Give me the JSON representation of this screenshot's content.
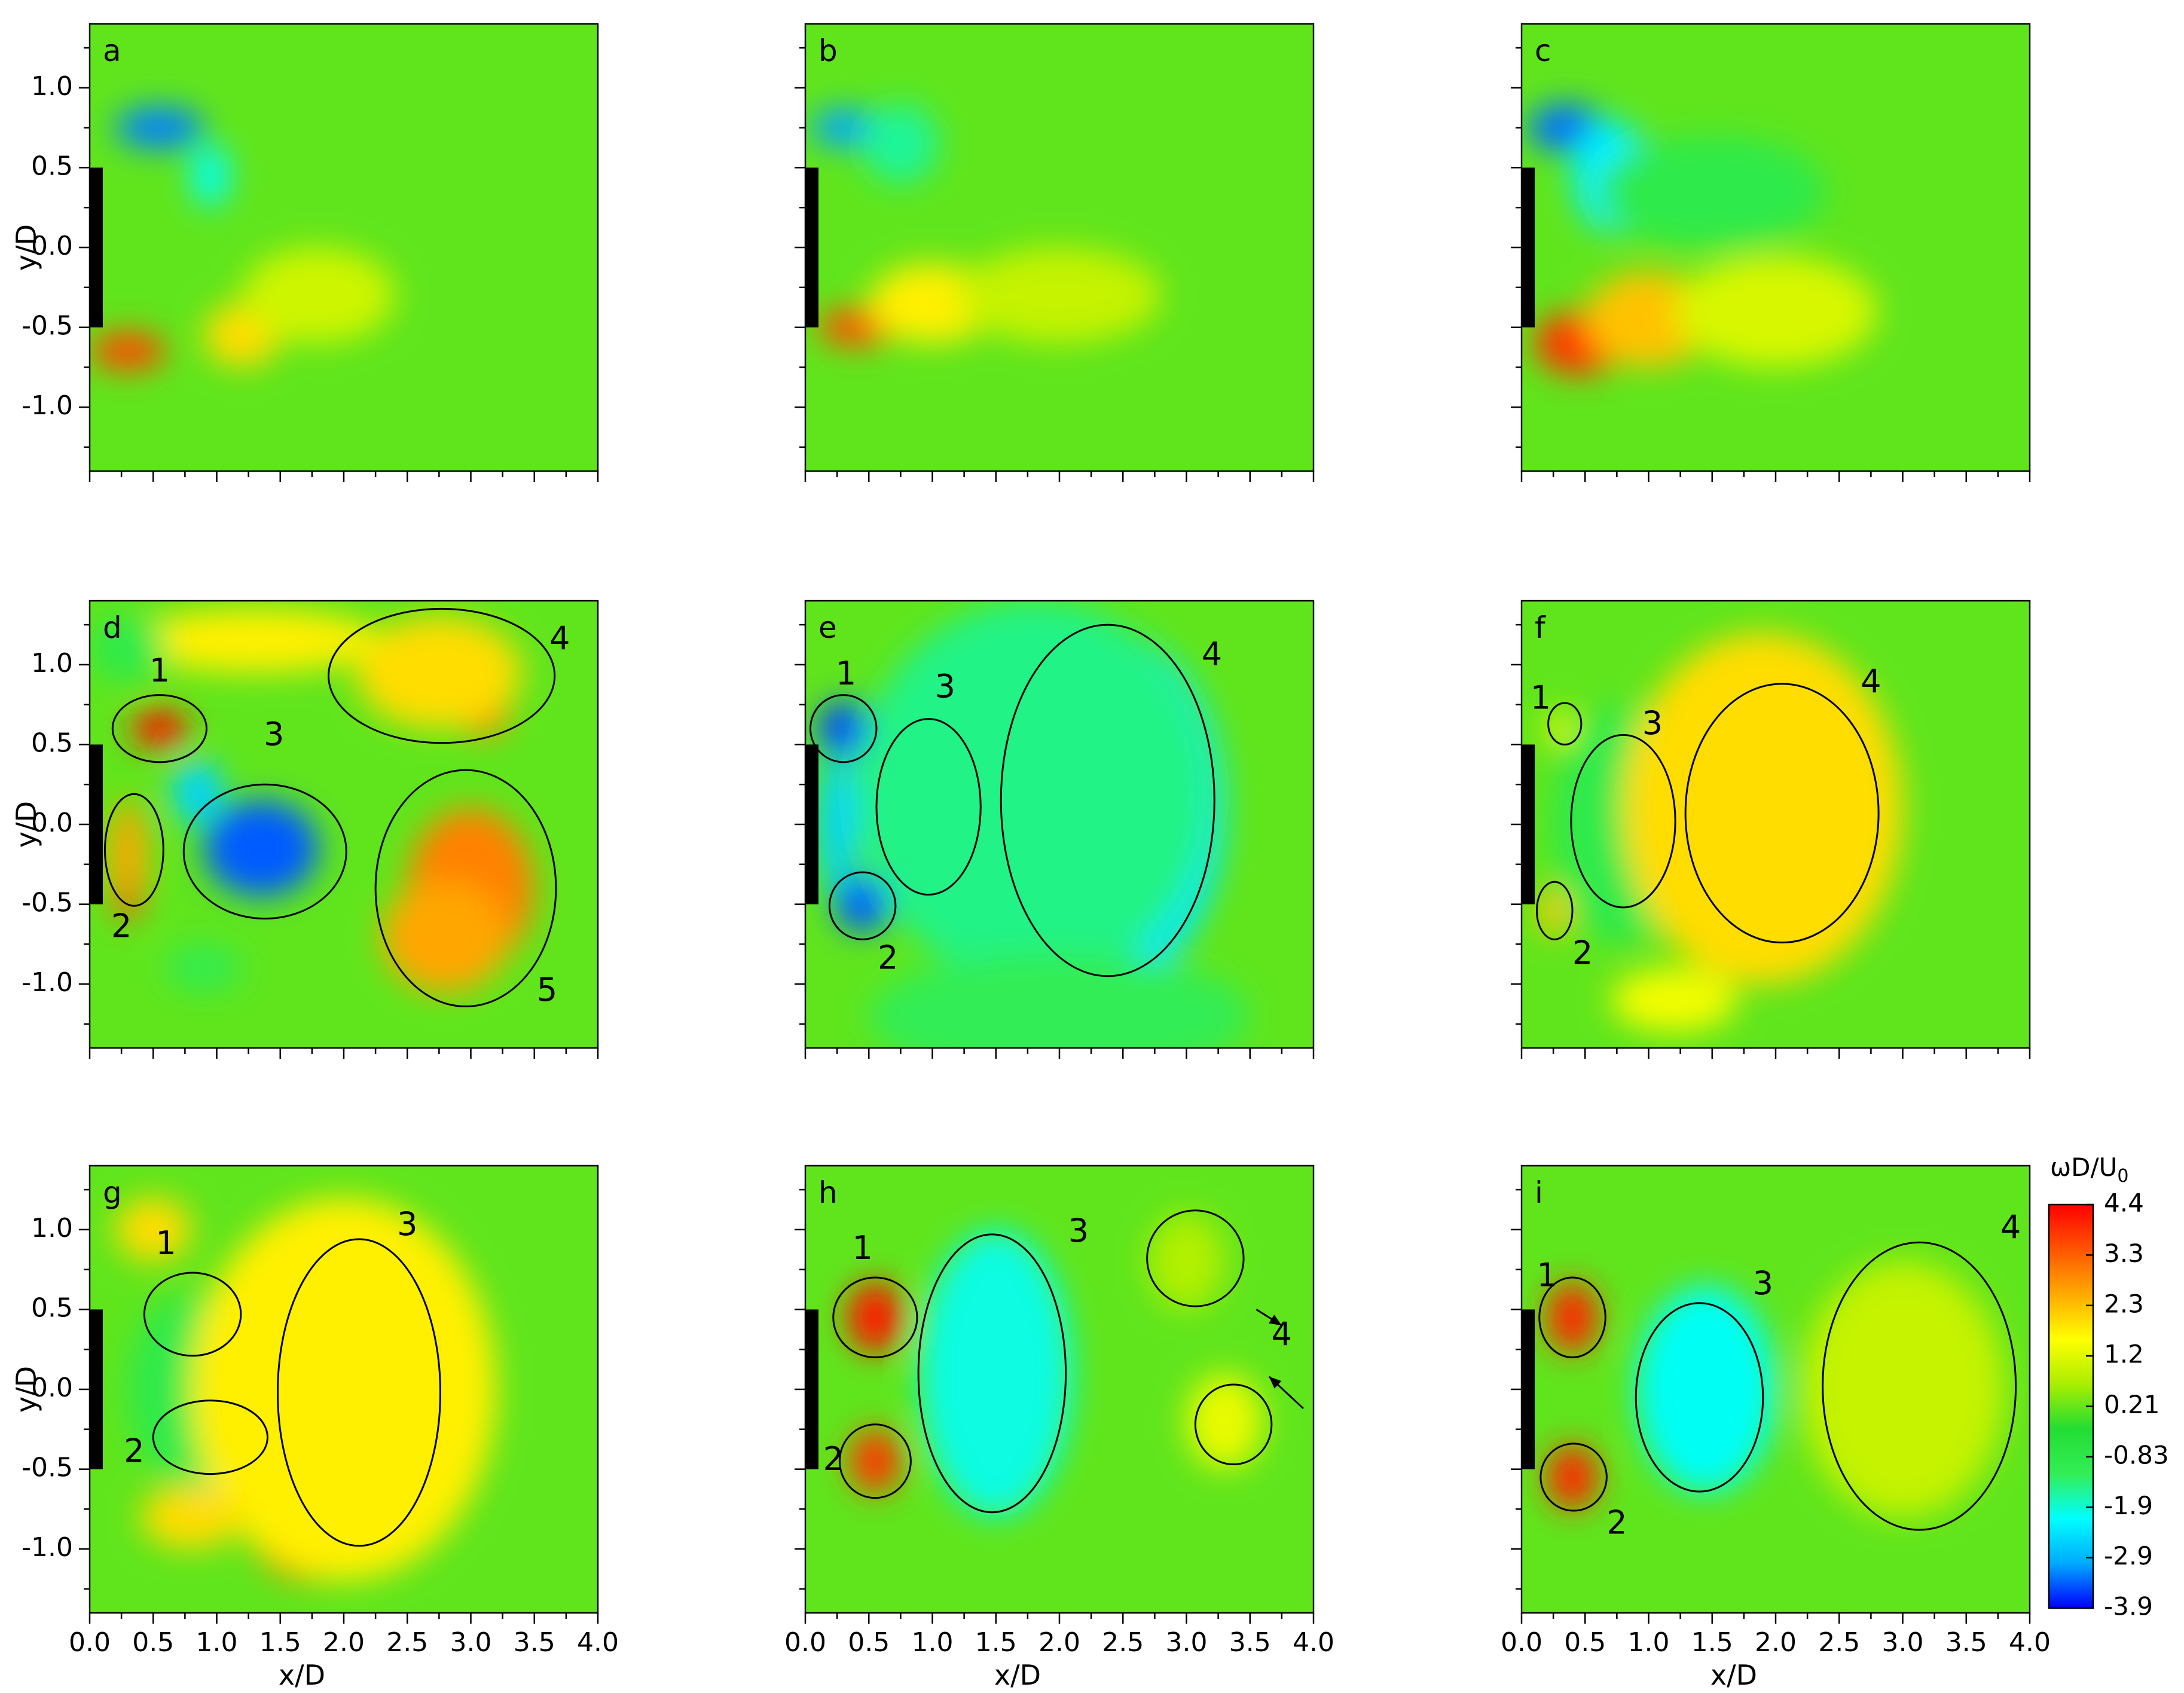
{
  "chart_data": {
    "type": "heatmap",
    "description_colormap": [
      "#0000ff",
      "#00aaff",
      "#00ffff",
      "#33ee55",
      "#22dd33",
      "#aaee00",
      "#ffff00",
      "#ffaa00",
      "#ff5500",
      "#ff0000"
    ],
    "colorbar": {
      "title": "ωD/U",
      "title_sub": "0",
      "ticks": [
        "4.4",
        "3.3",
        "2.3",
        "1.2",
        "0.21",
        "-0.83",
        "-1.9",
        "-2.9",
        "-3.9"
      ],
      "range": [
        -3.9,
        4.4
      ]
    },
    "x_axis": {
      "label": "x/D",
      "range": [
        0,
        4.0
      ],
      "ticks": [
        "0.0",
        "0.5",
        "1.0",
        "1.5",
        "2.0",
        "2.5",
        "3.0",
        "3.5",
        "4.0"
      ]
    },
    "y_axis": {
      "label": "y/D",
      "range": [
        -1.4,
        1.4
      ],
      "ticks": [
        "1.0",
        "0.5",
        "0.0",
        "-0.5",
        "-1.0"
      ]
    },
    "panels": [
      {
        "id": "a",
        "blobs": [
          {
            "x": 0.55,
            "y": 0.75,
            "rx": 0.35,
            "ry": 0.13,
            "v": -3.2
          },
          {
            "x": 0.95,
            "y": 0.45,
            "rx": 0.15,
            "ry": 0.2,
            "v": -2.0
          },
          {
            "x": 0.3,
            "y": -0.65,
            "rx": 0.3,
            "ry": 0.12,
            "v": 3.6
          },
          {
            "x": 1.2,
            "y": -0.55,
            "rx": 0.3,
            "ry": 0.2,
            "v": 2.0
          },
          {
            "x": 1.8,
            "y": -0.3,
            "rx": 0.6,
            "ry": 0.3,
            "v": 1.1
          }
        ],
        "ellipses": [],
        "labels": [],
        "arrows": []
      },
      {
        "id": "b",
        "blobs": [
          {
            "x": 0.3,
            "y": 0.75,
            "rx": 0.25,
            "ry": 0.12,
            "v": -3.0
          },
          {
            "x": 0.75,
            "y": 0.65,
            "rx": 0.3,
            "ry": 0.25,
            "v": -1.5
          },
          {
            "x": 0.4,
            "y": -0.5,
            "rx": 0.3,
            "ry": 0.12,
            "v": 3.5
          },
          {
            "x": 1.0,
            "y": -0.35,
            "rx": 0.5,
            "ry": 0.25,
            "v": 1.8
          },
          {
            "x": 2.0,
            "y": -0.3,
            "rx": 0.8,
            "ry": 0.3,
            "v": 1.0
          }
        ],
        "ellipses": [],
        "labels": [],
        "arrows": []
      },
      {
        "id": "c",
        "blobs": [
          {
            "x": 0.35,
            "y": 0.75,
            "rx": 0.3,
            "ry": 0.15,
            "v": -3.3
          },
          {
            "x": 0.7,
            "y": 0.45,
            "rx": 0.3,
            "ry": 0.35,
            "v": -2.2
          },
          {
            "x": 1.5,
            "y": 0.35,
            "rx": 0.9,
            "ry": 0.35,
            "v": -0.9
          },
          {
            "x": 0.45,
            "y": -0.6,
            "rx": 0.35,
            "ry": 0.2,
            "v": 3.8
          },
          {
            "x": 1.0,
            "y": -0.45,
            "rx": 0.5,
            "ry": 0.3,
            "v": 2.3
          },
          {
            "x": 2.0,
            "y": -0.4,
            "rx": 0.8,
            "ry": 0.35,
            "v": 1.2
          }
        ],
        "ellipses": [],
        "labels": [],
        "arrows": []
      },
      {
        "id": "d",
        "blobs": [
          {
            "x": 0.55,
            "y": 0.6,
            "rx": 0.22,
            "ry": 0.12,
            "v": 4.2
          },
          {
            "x": 1.35,
            "y": -0.15,
            "rx": 0.45,
            "ry": 0.3,
            "v": -3.4
          },
          {
            "x": 0.85,
            "y": 0.2,
            "rx": 0.2,
            "ry": 0.2,
            "v": -2.5
          },
          {
            "x": 0.3,
            "y": -0.2,
            "rx": 0.15,
            "ry": 0.35,
            "v": 2.6
          },
          {
            "x": 0.3,
            "y": -0.5,
            "rx": 0.1,
            "ry": 0.1,
            "v": 3.5
          },
          {
            "x": 2.4,
            "y": 1.0,
            "rx": 0.2,
            "ry": 0.2,
            "v": 3.2
          },
          {
            "x": 3.1,
            "y": 0.7,
            "rx": 0.2,
            "ry": 0.15,
            "v": 3.0
          },
          {
            "x": 2.75,
            "y": 0.95,
            "rx": 0.65,
            "ry": 0.35,
            "v": 2.0
          },
          {
            "x": 3.0,
            "y": -0.4,
            "rx": 0.5,
            "ry": 0.5,
            "v": 3.0
          },
          {
            "x": 2.8,
            "y": -0.7,
            "rx": 0.5,
            "ry": 0.35,
            "v": 2.6
          },
          {
            "x": 0.9,
            "y": -0.9,
            "rx": 0.3,
            "ry": 0.15,
            "v": -1.0
          },
          {
            "x": 1.3,
            "y": 1.15,
            "rx": 1.0,
            "ry": 0.2,
            "v": 1.8
          },
          {
            "x": 0.3,
            "y": 1.1,
            "rx": 0.3,
            "ry": 0.2,
            "v": -0.9
          }
        ],
        "ellipses": [
          {
            "cx": 0.55,
            "cy": 0.6,
            "rx": 0.37,
            "ry": 0.21
          },
          {
            "cx": 0.35,
            "cy": -0.16,
            "rx": 0.23,
            "ry": 0.35
          },
          {
            "cx": 1.38,
            "cy": -0.17,
            "rx": 0.64,
            "ry": 0.42
          },
          {
            "cx": 2.77,
            "cy": 0.93,
            "rx": 0.89,
            "ry": 0.42
          },
          {
            "cx": 2.96,
            "cy": -0.4,
            "rx": 0.71,
            "ry": 0.74
          }
        ],
        "labels": [
          {
            "text": "1",
            "x": 0.55,
            "y": 0.95
          },
          {
            "text": "2",
            "x": 0.25,
            "y": -0.65
          },
          {
            "text": "3",
            "x": 1.45,
            "y": 0.55
          },
          {
            "text": "4",
            "x": 3.7,
            "y": 1.15
          },
          {
            "text": "5",
            "x": 3.6,
            "y": -1.05
          }
        ],
        "arrows": []
      },
      {
        "id": "e",
        "blobs": [
          {
            "x": 0.3,
            "y": 0.6,
            "rx": 0.2,
            "ry": 0.17,
            "v": -3.5
          },
          {
            "x": 0.45,
            "y": -0.5,
            "rx": 0.22,
            "ry": 0.17,
            "v": -3.4
          },
          {
            "x": 0.25,
            "y": 0.0,
            "rx": 0.15,
            "ry": 0.45,
            "v": -2.5
          },
          {
            "x": 0.85,
            "y": 0.3,
            "rx": 0.25,
            "ry": 0.3,
            "v": 4.0
          },
          {
            "x": 0.95,
            "y": -0.3,
            "rx": 0.2,
            "ry": 0.2,
            "v": 3.2
          },
          {
            "x": 0.9,
            "y": 0.0,
            "rx": 0.35,
            "ry": 0.6,
            "v": 2.3
          },
          {
            "x": 2.2,
            "y": 0.65,
            "rx": 0.45,
            "ry": 0.4,
            "v": -3.4
          },
          {
            "x": 2.6,
            "y": -0.3,
            "rx": 0.5,
            "ry": 0.45,
            "v": -3.2
          },
          {
            "x": 2.4,
            "y": 0.1,
            "rx": 0.9,
            "ry": 1.1,
            "v": -2.3
          },
          {
            "x": 1.8,
            "y": 0.2,
            "rx": 1.4,
            "ry": 1.2,
            "v": -1.4
          },
          {
            "x": 2.0,
            "y": -1.2,
            "rx": 1.5,
            "ry": 0.4,
            "v": -1.1
          }
        ],
        "ellipses": [
          {
            "cx": 0.3,
            "cy": 0.6,
            "rx": 0.26,
            "ry": 0.21
          },
          {
            "cx": 0.45,
            "cy": -0.51,
            "rx": 0.26,
            "ry": 0.21
          },
          {
            "cx": 0.97,
            "cy": 0.11,
            "rx": 0.41,
            "ry": 0.55
          },
          {
            "cx": 2.38,
            "cy": 0.15,
            "rx": 0.84,
            "ry": 1.1
          }
        ],
        "labels": [
          {
            "text": "1",
            "x": 0.32,
            "y": 0.93
          },
          {
            "text": "2",
            "x": 0.65,
            "y": -0.85
          },
          {
            "text": "3",
            "x": 1.1,
            "y": 0.85
          },
          {
            "text": "4",
            "x": 3.2,
            "y": 1.05
          }
        ],
        "arrows": []
      },
      {
        "id": "f",
        "blobs": [
          {
            "x": 0.7,
            "y": 0.2,
            "rx": 0.15,
            "ry": 0.2,
            "v": -3.6
          },
          {
            "x": 0.75,
            "y": -0.3,
            "rx": 0.2,
            "ry": 0.25,
            "v": -3.2
          },
          {
            "x": 0.75,
            "y": 0.0,
            "rx": 0.35,
            "ry": 0.55,
            "v": -2.3
          },
          {
            "x": 0.8,
            "y": 0.0,
            "rx": 0.55,
            "ry": 0.75,
            "v": -0.9
          },
          {
            "x": 2.3,
            "y": 0.0,
            "rx": 0.35,
            "ry": 0.45,
            "v": 4.0
          },
          {
            "x": 1.9,
            "y": -0.35,
            "rx": 0.35,
            "ry": 0.35,
            "v": 4.0
          },
          {
            "x": 2.0,
            "y": 0.05,
            "rx": 0.7,
            "ry": 0.8,
            "v": 3.2
          },
          {
            "x": 1.9,
            "y": 0.1,
            "rx": 1.1,
            "ry": 1.1,
            "v": 2.0
          },
          {
            "x": 0.3,
            "y": 0.6,
            "rx": 0.12,
            "ry": 0.1,
            "v": 1.5
          },
          {
            "x": 0.25,
            "y": -0.55,
            "rx": 0.12,
            "ry": 0.15,
            "v": 2.2
          },
          {
            "x": 1.2,
            "y": -1.1,
            "rx": 0.5,
            "ry": 0.2,
            "v": 1.5
          }
        ],
        "ellipses": [
          {
            "cx": 0.34,
            "cy": 0.63,
            "rx": 0.13,
            "ry": 0.13
          },
          {
            "cx": 0.26,
            "cy": -0.54,
            "rx": 0.14,
            "ry": 0.18
          },
          {
            "cx": 0.8,
            "cy": 0.02,
            "rx": 0.41,
            "ry": 0.54
          },
          {
            "cx": 2.05,
            "cy": 0.07,
            "rx": 0.76,
            "ry": 0.81
          }
        ],
        "labels": [
          {
            "text": "1",
            "x": 0.15,
            "y": 0.78
          },
          {
            "text": "2",
            "x": 0.48,
            "y": -0.82
          },
          {
            "text": "3",
            "x": 1.03,
            "y": 0.62
          },
          {
            "text": "4",
            "x": 2.75,
            "y": 0.88
          }
        ],
        "arrows": []
      },
      {
        "id": "g",
        "blobs": [
          {
            "x": 0.8,
            "y": 0.4,
            "rx": 0.15,
            "ry": 0.2,
            "v": -3.4
          },
          {
            "x": 1.05,
            "y": -0.5,
            "rx": 0.2,
            "ry": 0.18,
            "v": -2.9
          },
          {
            "x": 0.8,
            "y": 0.0,
            "rx": 0.5,
            "ry": 0.6,
            "v": -0.9
          },
          {
            "x": 2.4,
            "y": 0.0,
            "rx": 0.35,
            "ry": 0.4,
            "v": 4.2
          },
          {
            "x": 1.9,
            "y": -0.3,
            "rx": 0.3,
            "ry": 0.3,
            "v": 4.0
          },
          {
            "x": 2.1,
            "y": 0.0,
            "rx": 0.7,
            "ry": 0.9,
            "v": 3.0
          },
          {
            "x": 1.8,
            "y": -0.95,
            "rx": 0.5,
            "ry": 0.25,
            "v": 3.8
          },
          {
            "x": 2.0,
            "y": 0.0,
            "rx": 1.2,
            "ry": 1.2,
            "v": 1.8
          },
          {
            "x": 0.5,
            "y": 1.0,
            "rx": 0.3,
            "ry": 0.2,
            "v": 2.0
          },
          {
            "x": 0.8,
            "y": -0.8,
            "rx": 0.4,
            "ry": 0.2,
            "v": 2.0
          }
        ],
        "ellipses": [
          {
            "cx": 0.81,
            "cy": 0.47,
            "rx": 0.38,
            "ry": 0.26
          },
          {
            "cx": 0.95,
            "cy": -0.3,
            "rx": 0.45,
            "ry": 0.23
          },
          {
            "cx": 2.12,
            "cy": -0.02,
            "rx": 0.64,
            "ry": 0.96
          }
        ],
        "labels": [
          {
            "text": "1",
            "x": 0.6,
            "y": 0.9
          },
          {
            "text": "2",
            "x": 0.35,
            "y": -0.4
          },
          {
            "text": "3",
            "x": 2.5,
            "y": 1.02
          }
        ],
        "arrows": []
      },
      {
        "id": "h",
        "blobs": [
          {
            "x": 0.55,
            "y": 0.45,
            "rx": 0.22,
            "ry": 0.22,
            "v": 4.2
          },
          {
            "x": 0.55,
            "y": -0.45,
            "rx": 0.2,
            "ry": 0.2,
            "v": 3.8
          },
          {
            "x": 1.45,
            "y": 0.55,
            "rx": 0.35,
            "ry": 0.35,
            "v": -3.4
          },
          {
            "x": 1.7,
            "y": -0.3,
            "rx": 0.25,
            "ry": 0.3,
            "v": -3.2
          },
          {
            "x": 1.5,
            "y": 0.1,
            "rx": 0.6,
            "ry": 0.9,
            "v": -1.9
          },
          {
            "x": 3.3,
            "y": -0.2,
            "rx": 0.3,
            "ry": 0.3,
            "v": 1.4
          },
          {
            "x": 3.0,
            "y": 0.8,
            "rx": 0.3,
            "ry": 0.3,
            "v": 0.8
          }
        ],
        "ellipses": [
          {
            "cx": 0.55,
            "cy": 0.45,
            "rx": 0.33,
            "ry": 0.25
          },
          {
            "cx": 0.55,
            "cy": -0.45,
            "rx": 0.28,
            "ry": 0.23
          },
          {
            "cx": 1.47,
            "cy": 0.1,
            "rx": 0.58,
            "ry": 0.87
          },
          {
            "cx": 3.07,
            "cy": 0.82,
            "rx": 0.38,
            "ry": 0.3
          },
          {
            "cx": 3.37,
            "cy": -0.22,
            "rx": 0.3,
            "ry": 0.25
          }
        ],
        "labels": [
          {
            "text": "1",
            "x": 0.45,
            "y": 0.87
          },
          {
            "text": "2",
            "x": 0.22,
            "y": -0.45
          },
          {
            "text": "3",
            "x": 2.15,
            "y": 0.98
          },
          {
            "text": "4",
            "x": 3.75,
            "y": 0.33
          }
        ],
        "arrows": [
          {
            "x1": 3.55,
            "y1": 0.5,
            "x2": 3.75,
            "y2": 0.4
          },
          {
            "x1": 3.92,
            "y1": -0.12,
            "x2": 3.65,
            "y2": 0.08
          }
        ]
      },
      {
        "id": "i",
        "blobs": [
          {
            "x": 0.4,
            "y": 0.45,
            "rx": 0.2,
            "ry": 0.22,
            "v": 4.0
          },
          {
            "x": 0.4,
            "y": -0.55,
            "rx": 0.2,
            "ry": 0.2,
            "v": 4.0
          },
          {
            "x": 1.4,
            "y": -0.05,
            "rx": 0.35,
            "ry": 0.45,
            "v": -3.6
          },
          {
            "x": 1.45,
            "y": 0.0,
            "rx": 0.55,
            "ry": 0.65,
            "v": -2.0
          },
          {
            "x": 3.2,
            "y": 0.1,
            "rx": 0.5,
            "ry": 0.5,
            "v": 1.6
          },
          {
            "x": 3.0,
            "y": 0.0,
            "rx": 0.8,
            "ry": 0.8,
            "v": 1.0
          }
        ],
        "ellipses": [
          {
            "cx": 0.4,
            "cy": 0.45,
            "rx": 0.26,
            "ry": 0.25
          },
          {
            "cx": 0.41,
            "cy": -0.55,
            "rx": 0.26,
            "ry": 0.21
          },
          {
            "cx": 1.4,
            "cy": -0.05,
            "rx": 0.5,
            "ry": 0.59
          },
          {
            "cx": 3.13,
            "cy": 0.02,
            "rx": 0.76,
            "ry": 0.9
          }
        ],
        "labels": [
          {
            "text": "1",
            "x": 0.2,
            "y": 0.7
          },
          {
            "text": "2",
            "x": 0.75,
            "y": -0.85
          },
          {
            "text": "3",
            "x": 1.9,
            "y": 0.65
          },
          {
            "text": "4",
            "x": 3.85,
            "y": 1.0
          }
        ],
        "arrows": []
      }
    ]
  }
}
